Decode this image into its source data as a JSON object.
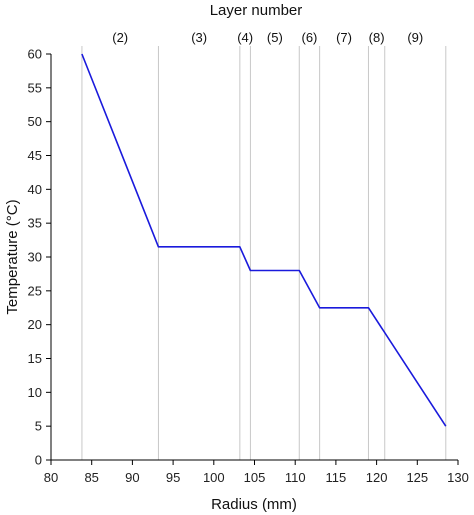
{
  "chart_data": {
    "type": "line",
    "title": "",
    "xlabel": "Radius (mm)",
    "ylabel": "Temperature (°C)",
    "top_axis_label": "Layer number",
    "xlim": [
      80,
      130
    ],
    "ylim": [
      0,
      60
    ],
    "x_ticks": [
      80,
      85,
      90,
      95,
      100,
      105,
      110,
      115,
      120,
      125,
      130
    ],
    "y_ticks": [
      0,
      5,
      10,
      15,
      20,
      25,
      30,
      35,
      40,
      45,
      50,
      55,
      60
    ],
    "grid": false,
    "line_color": "#1a1adc",
    "boundary_color": "#c8c8c8",
    "series": [
      {
        "x": [
          83.8,
          93.2,
          103.2,
          104.5,
          110.5,
          113.0,
          119.0,
          128.5
        ],
        "y": [
          60.0,
          31.5,
          31.5,
          28.0,
          28.0,
          22.5,
          22.5,
          5.0
        ]
      }
    ],
    "layer_boundaries": [
      83.8,
      93.2,
      103.2,
      104.5,
      110.5,
      113.0,
      119.0,
      121.0,
      128.5
    ],
    "layers": [
      {
        "label": "(2)",
        "x": 88.5
      },
      {
        "label": "(3)",
        "x": 98.2
      },
      {
        "label": "(4)",
        "x": 103.85
      },
      {
        "label": "(5)",
        "x": 107.5
      },
      {
        "label": "(6)",
        "x": 111.75
      },
      {
        "label": "(7)",
        "x": 116.0
      },
      {
        "label": "(8)",
        "x": 120.0
      },
      {
        "label": "(9)",
        "x": 124.75
      }
    ]
  }
}
